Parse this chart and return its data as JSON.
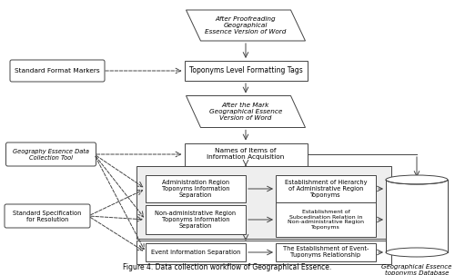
{
  "bg_color": "#ffffff",
  "border_color": "#444444",
  "title": "Figure 4. Data collection workflow of Geographical Essence.",
  "p1_text": "After Proofreading\nGeographical\nEssence Version of Word",
  "r1_text": "Toponyms Level Formatting Tags",
  "p2_text": "After the Mark\nGeographical Essence\nVersion of Word",
  "r2_text": "Names of Items of\nInformation Acquisition",
  "l1_text": "Standard Format Markers",
  "l2_text": "Geography Essence Data\nCollection Tool",
  "l3_text": "Standard Specification\nfor Resolution",
  "ba1_text": "Administration Region\nToponyms Information\nSeparation",
  "ba2_text": "Establishment of Hierarchy\nof Administrative Region\nToponyms",
  "bb1_text": "Non-administrative Region\nToponyms Information\nSeparation",
  "bb2_text": "Establishment of\nSubcedination Relation in\nNon-administrative Region\nToponyms",
  "bc1_text": "Event Information Separation",
  "bc2_text": "The Establishment of Event-\nTuponyms Relationship",
  "db_text": "Geographical Essence\ntoponyms Database"
}
